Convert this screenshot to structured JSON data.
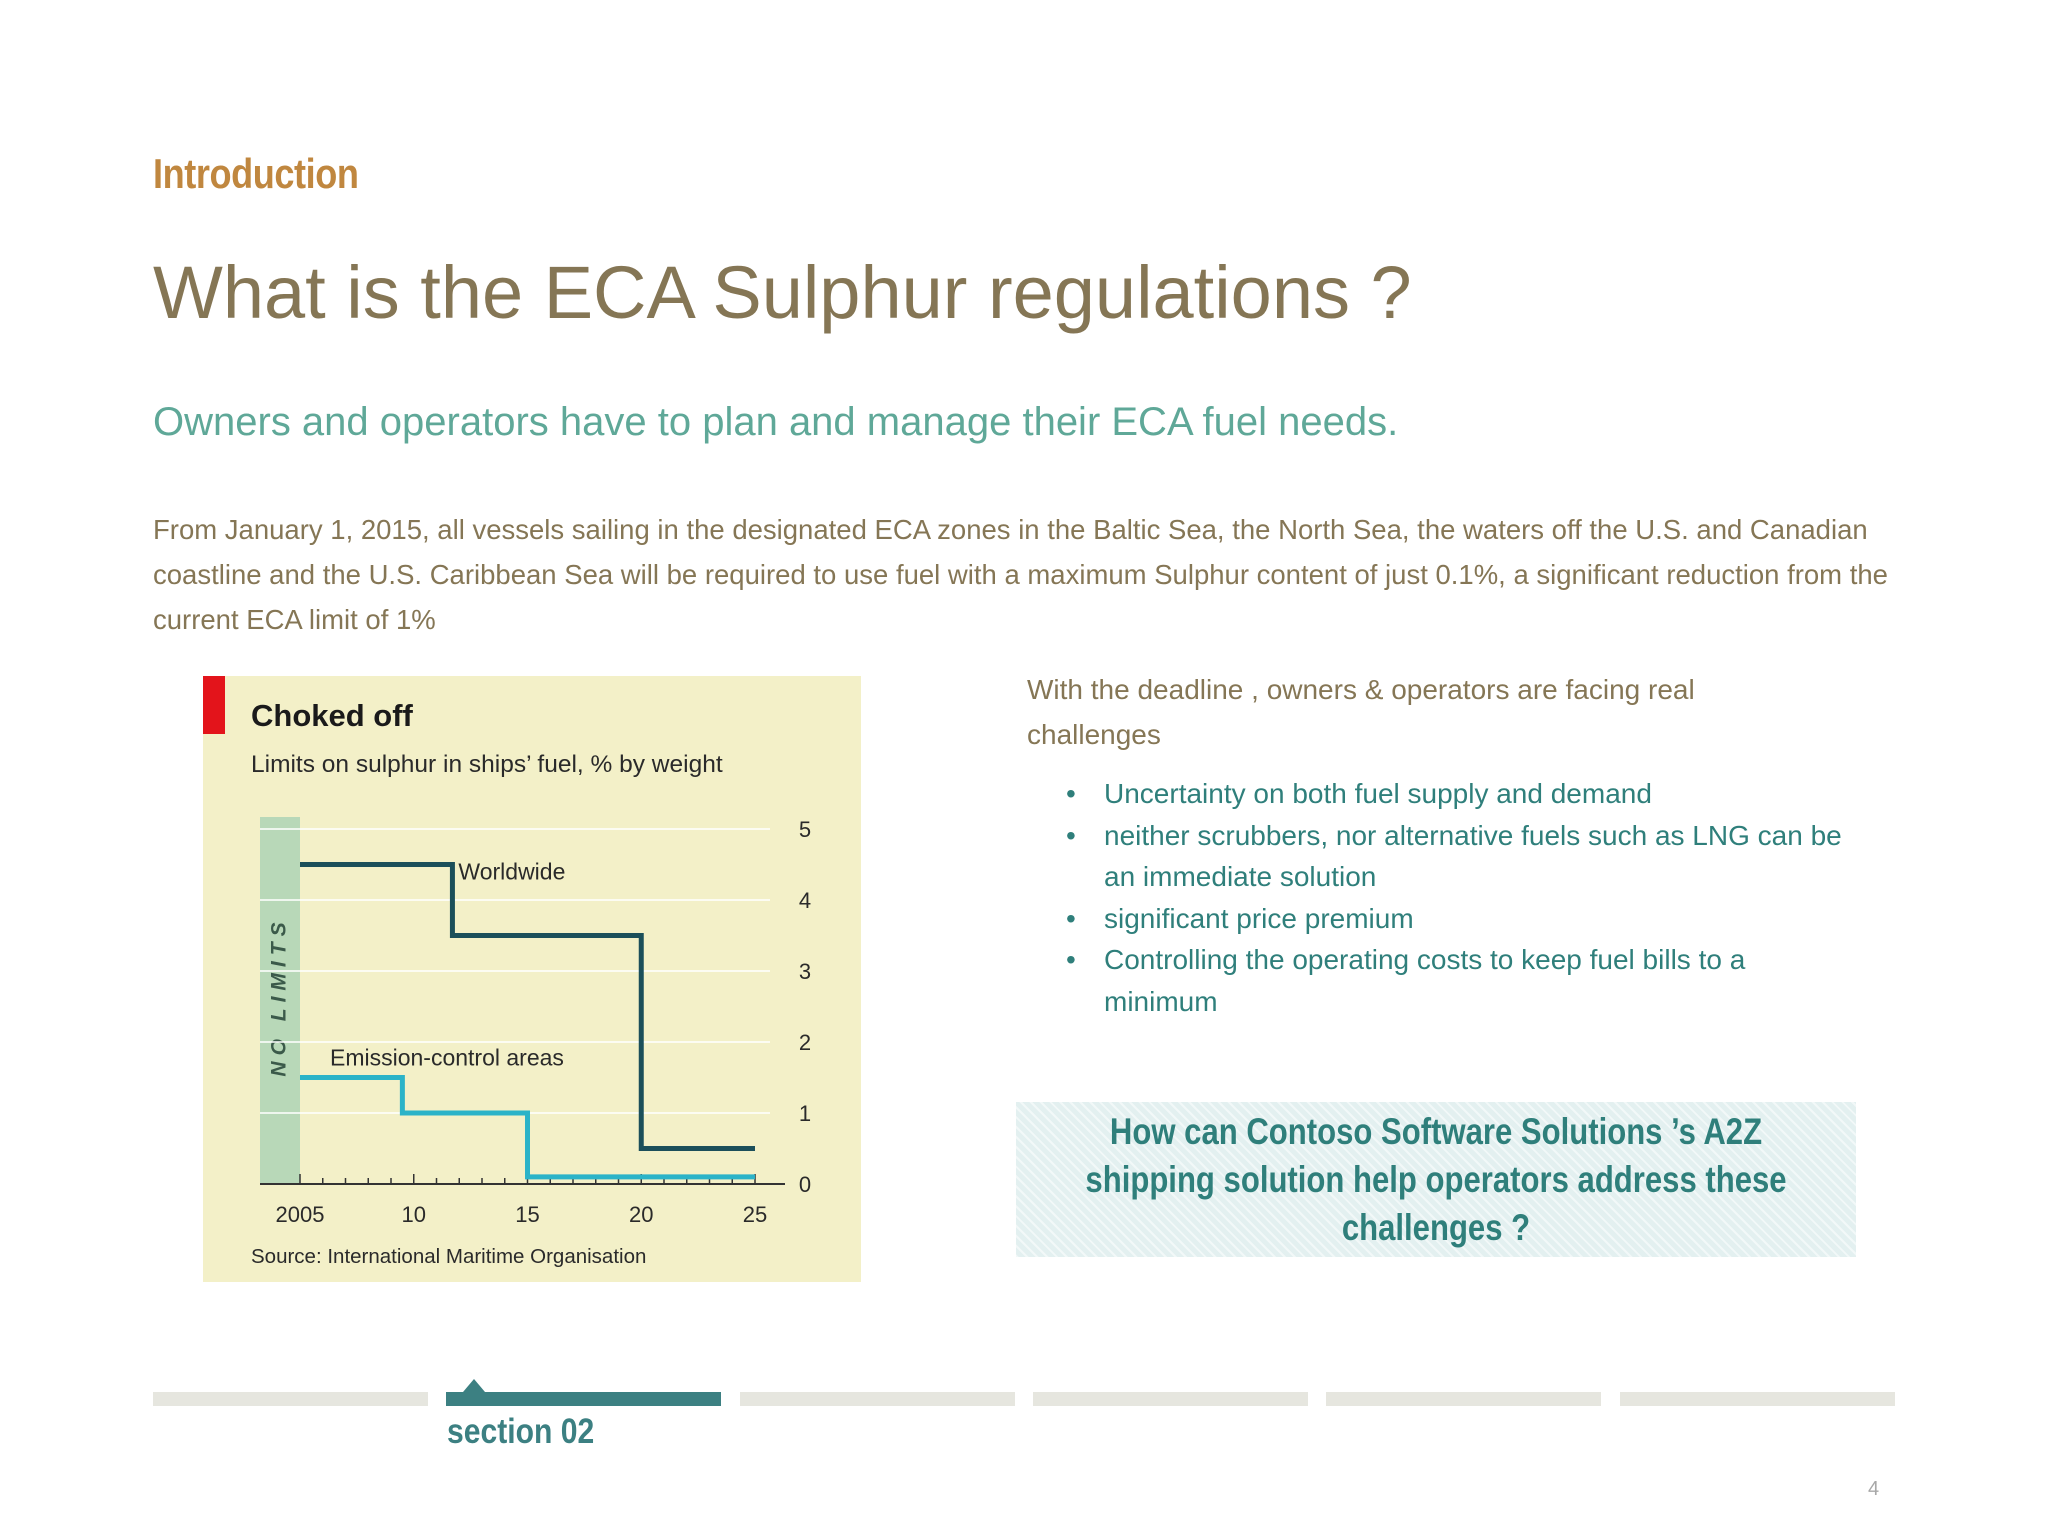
{
  "slide": {
    "section_label": "Introduction",
    "title": "What is the ECA Sulphur regulations ?",
    "subtitle": "Owners and operators have to plan and manage their ECA fuel needs.",
    "body": "From January 1, 2015, all vessels sailing in the designated ECA zones in the Baltic Sea, the North Sea, the waters off the U.S. and Canadian coastline and the U.S. Caribbean Sea will be required to use fuel with a maximum Sulphur content of just 0.1%, a significant reduction from the current ECA limit of 1%",
    "challenges_intro": "With the deadline , owners & operators are facing real challenges",
    "bullets": [
      "Uncertainty on both fuel supply and demand",
      "neither scrubbers, nor alternative fuels such as LNG can be an immediate solution",
      "significant price premium",
      "Controlling the operating costs to keep fuel bills to a minimum"
    ],
    "callout": "How can Contoso Software Solutions ’s  A2Z shipping solution help operators address these challenges ?",
    "nav_active_label": "section 02",
    "page_number": "4"
  },
  "nav": {
    "segments": 6,
    "active_index": 1
  },
  "colors": {
    "accent_orange": "#c0873f",
    "title_brown": "#857655",
    "subtitle_green": "#5fa898",
    "teal": "#2f7f7b",
    "chart_bg": "#f3f0c8",
    "worldwide_line": "#1b4f5a",
    "eca_line": "#2bb3c8",
    "flag_red": "#e3141b"
  },
  "chart_data": {
    "type": "line",
    "title": "Choked off",
    "subtitle": "Limits on sulphur in ships’ fuel, % by weight",
    "source": "Source: International Maritime Organisation",
    "band_label": "NO LIMITS",
    "x_ticks": [
      "2005",
      "10",
      "15",
      "20",
      "25"
    ],
    "x_tick_values": [
      2005,
      2010,
      2015,
      2020,
      2025
    ],
    "y_ticks": [
      0,
      1,
      2,
      3,
      4,
      5
    ],
    "xlim": [
      2005,
      2025
    ],
    "ylim": [
      0,
      5
    ],
    "y_axis_side": "right",
    "grid": "horizontal",
    "series": [
      {
        "name": "Worldwide",
        "color": "#1b4f5a",
        "points": [
          [
            2005,
            4.5
          ],
          [
            2011.7,
            4.5
          ],
          [
            2011.7,
            3.5
          ],
          [
            2020,
            3.5
          ],
          [
            2020,
            0.5
          ],
          [
            2025,
            0.5
          ]
        ]
      },
      {
        "name": "Emission-control areas",
        "color": "#2bb3c8",
        "points": [
          [
            2005,
            1.5
          ],
          [
            2009.5,
            1.5
          ],
          [
            2009.5,
            1.0
          ],
          [
            2015,
            1.0
          ],
          [
            2015,
            0.1
          ],
          [
            2025,
            0.1
          ]
        ]
      }
    ]
  }
}
